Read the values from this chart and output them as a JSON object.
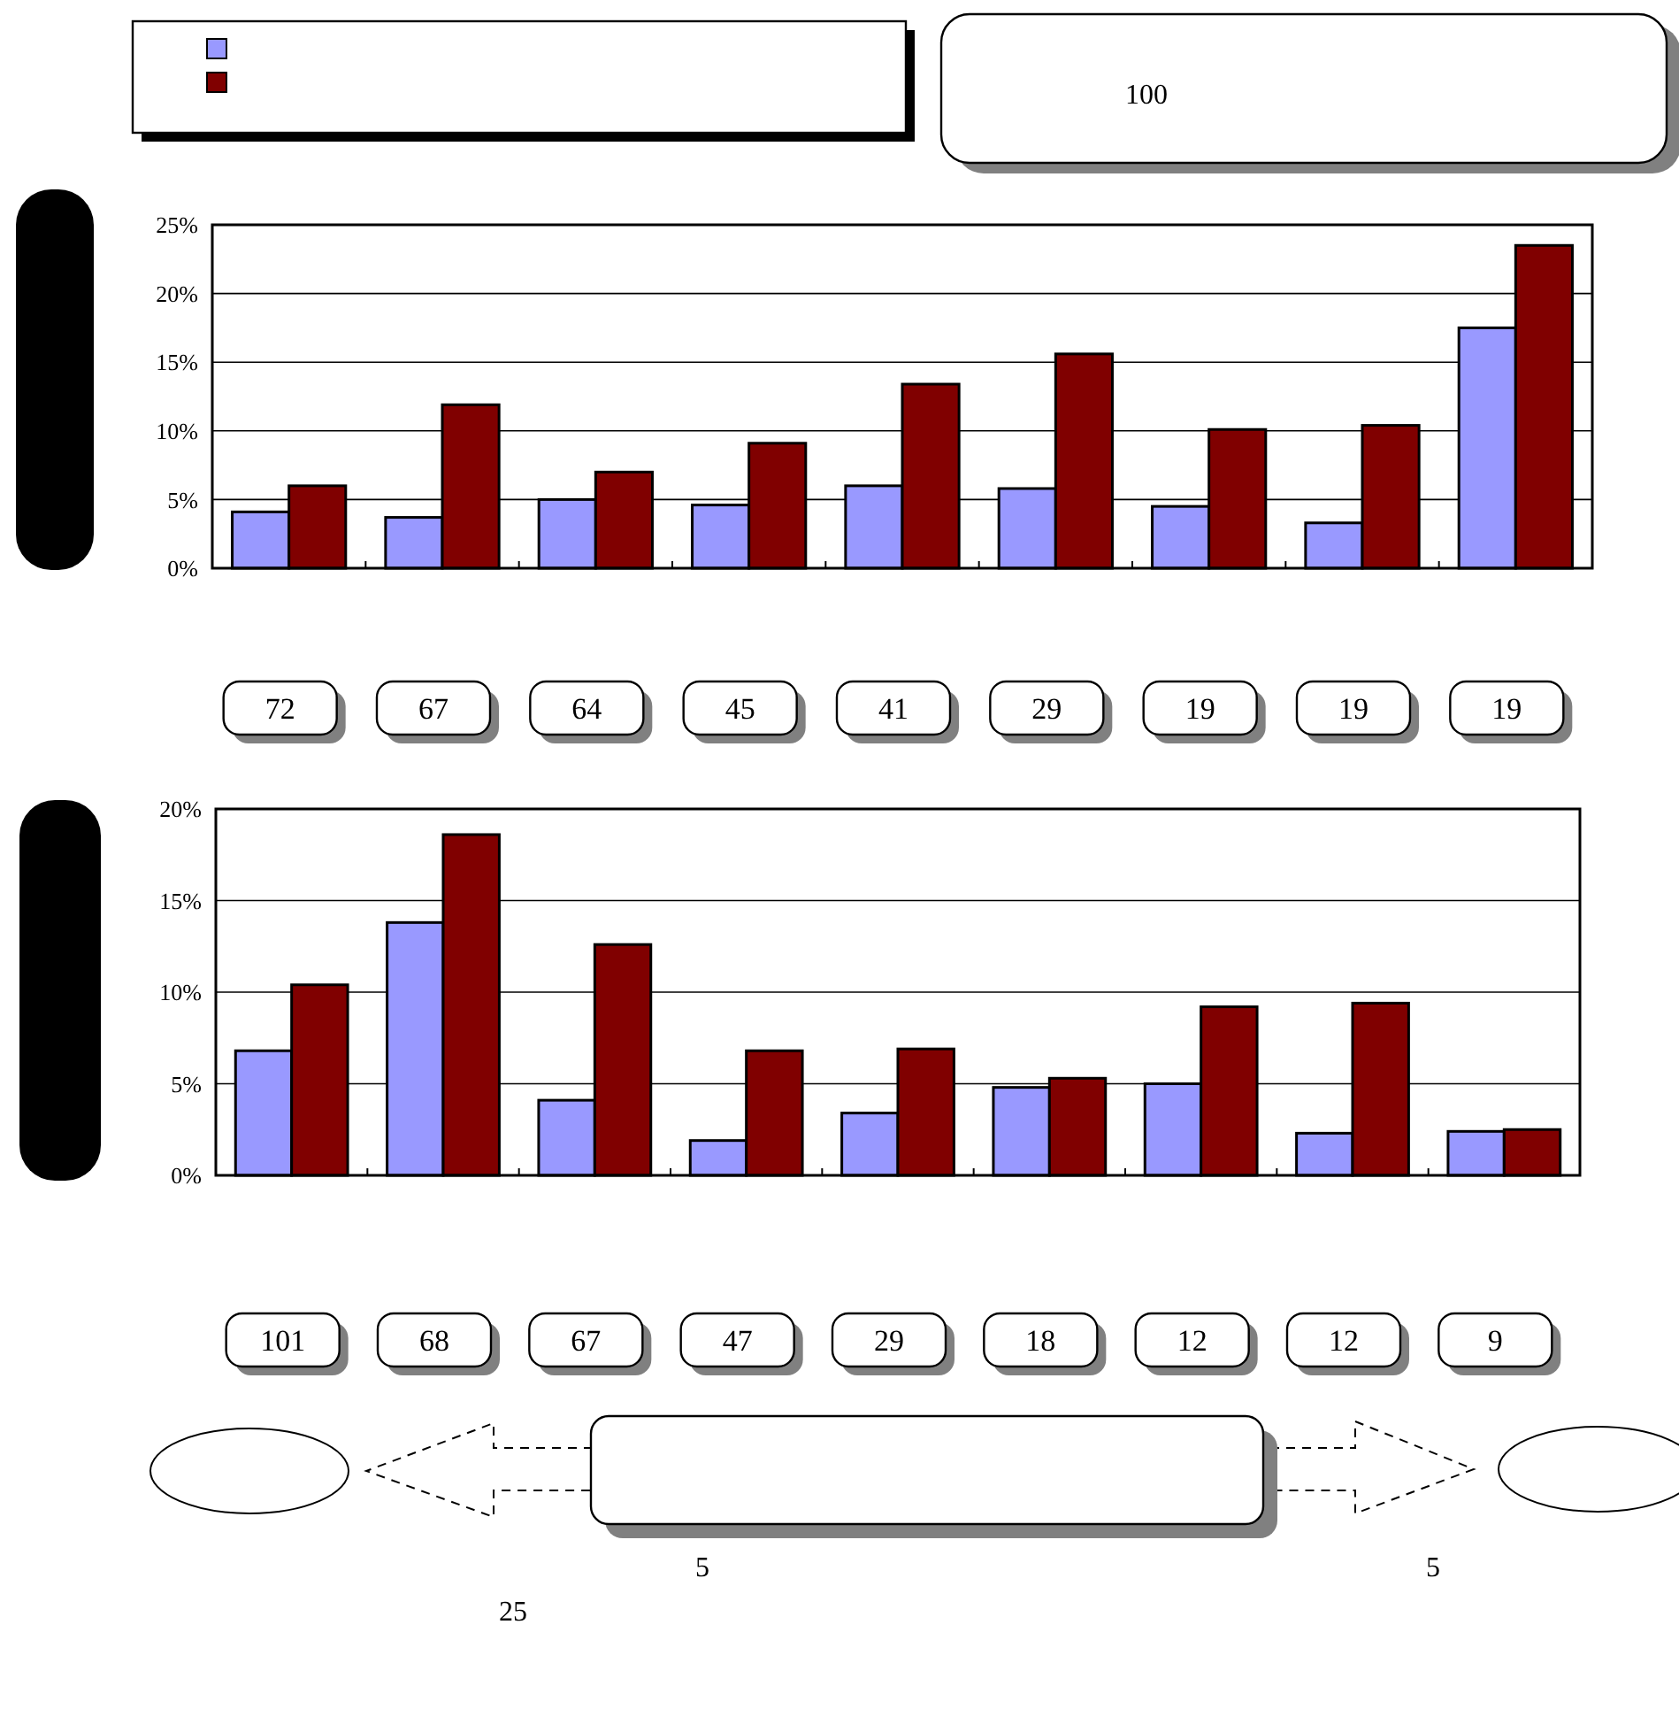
{
  "chart_data": [
    {
      "type": "bar",
      "categories": [
        "72",
        "67",
        "64",
        "45",
        "41",
        "29",
        "19",
        "19",
        "19"
      ],
      "series": [
        {
          "color": "#9999ff",
          "values": [
            4.1,
            3.7,
            5.0,
            4.6,
            6.0,
            5.8,
            4.5,
            3.3,
            17.5
          ]
        },
        {
          "color": "#800000",
          "values": [
            6.0,
            11.9,
            7.0,
            9.1,
            13.4,
            15.6,
            10.1,
            10.4,
            23.5
          ]
        }
      ],
      "ylim": [
        0,
        25
      ],
      "yticks": [
        {
          "value": 0,
          "label": "0%"
        },
        {
          "value": 5,
          "label": "5%"
        },
        {
          "value": 10,
          "label": "10%"
        },
        {
          "value": 15,
          "label": "15%"
        },
        {
          "value": 20,
          "label": "20%"
        },
        {
          "value": 25,
          "label": "25%"
        }
      ],
      "grid": "y",
      "annotations": [
        "100"
      ]
    },
    {
      "type": "bar",
      "categories": [
        "101",
        "68",
        "67",
        "47",
        "29",
        "18",
        "12",
        "12",
        "9"
      ],
      "series": [
        {
          "color": "#9999ff",
          "values": [
            6.8,
            13.8,
            4.1,
            1.9,
            3.4,
            4.8,
            5.0,
            2.3,
            2.4
          ]
        },
        {
          "color": "#800000",
          "values": [
            10.4,
            18.6,
            12.6,
            6.8,
            6.9,
            5.3,
            9.2,
            9.4,
            2.5
          ]
        }
      ],
      "ylim": [
        0,
        20
      ],
      "yticks": [
        {
          "value": 0,
          "label": "0%"
        },
        {
          "value": 5,
          "label": "5%"
        },
        {
          "value": 10,
          "label": "10%"
        },
        {
          "value": 15,
          "label": "15%"
        },
        {
          "value": 20,
          "label": "20%"
        }
      ],
      "grid": "y",
      "annotations": [
        "5",
        "5",
        "25"
      ]
    }
  ]
}
